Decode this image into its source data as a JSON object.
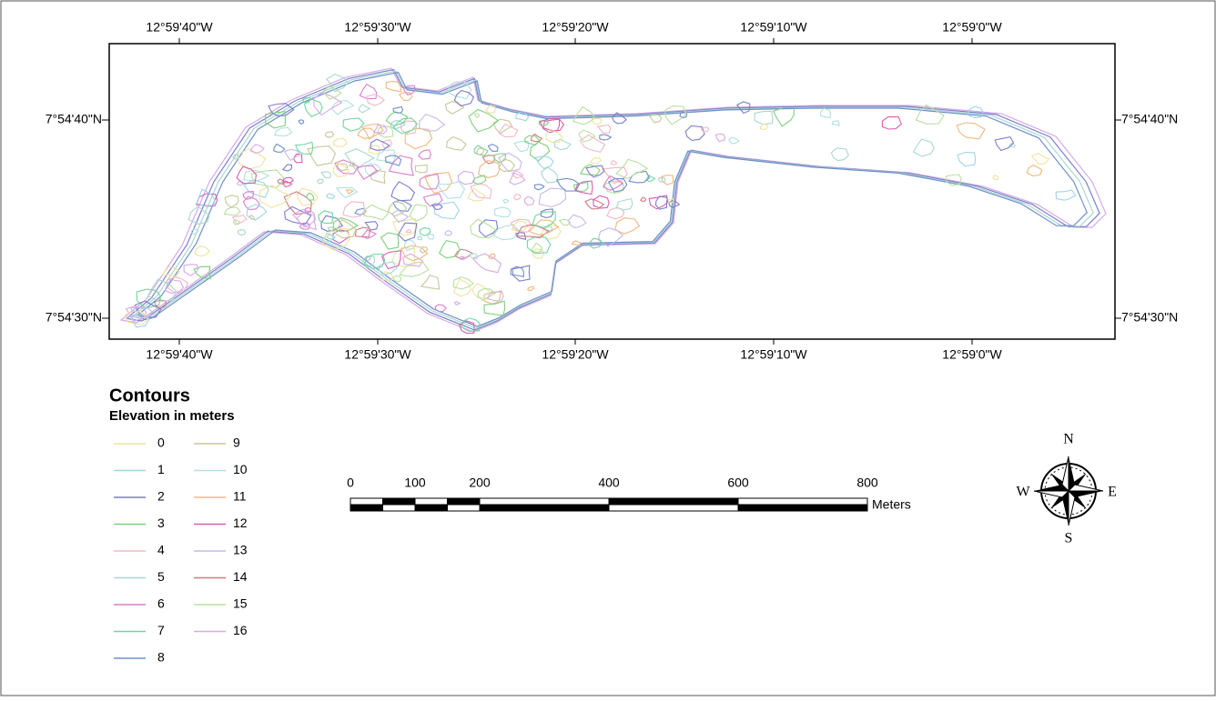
{
  "graticule": {
    "longitudes": [
      "12°59'40\"W",
      "12°59'30\"W",
      "12°59'20\"W",
      "12°59'10\"W",
      "12°59'0\"W"
    ],
    "latitudes": [
      "7°54'40\"N",
      "7°54'30\"N"
    ]
  },
  "legend": {
    "title": "Contours",
    "subtitle": "Elevation in meters",
    "items": [
      {
        "label": "0",
        "color": "#efe3a0"
      },
      {
        "label": "1",
        "color": "#9fd4e8"
      },
      {
        "label": "2",
        "color": "#7b7fc9"
      },
      {
        "label": "3",
        "color": "#7fd07f"
      },
      {
        "label": "4",
        "color": "#f2b8c6"
      },
      {
        "label": "5",
        "color": "#a9d8d0"
      },
      {
        "label": "6",
        "color": "#d97fcf"
      },
      {
        "label": "7",
        "color": "#6fd6a0"
      },
      {
        "label": "8",
        "color": "#6f8fc9"
      },
      {
        "label": "9",
        "color": "#c7c79a"
      },
      {
        "label": "10",
        "color": "#b0e0e0"
      },
      {
        "label": "11",
        "color": "#f0b87f"
      },
      {
        "label": "12",
        "color": "#d95fb0"
      },
      {
        "label": "13",
        "color": "#c8b8e8"
      },
      {
        "label": "14",
        "color": "#d07f7f"
      },
      {
        "label": "15",
        "color": "#b8e0a0"
      },
      {
        "label": "16",
        "color": "#d8a8e8"
      }
    ]
  },
  "scale_bar": {
    "ticks": [
      0,
      100,
      200,
      400,
      600,
      800
    ],
    "unit": "Meters"
  },
  "compass": {
    "north": "N",
    "south": "S",
    "east": "E",
    "west": "W"
  }
}
